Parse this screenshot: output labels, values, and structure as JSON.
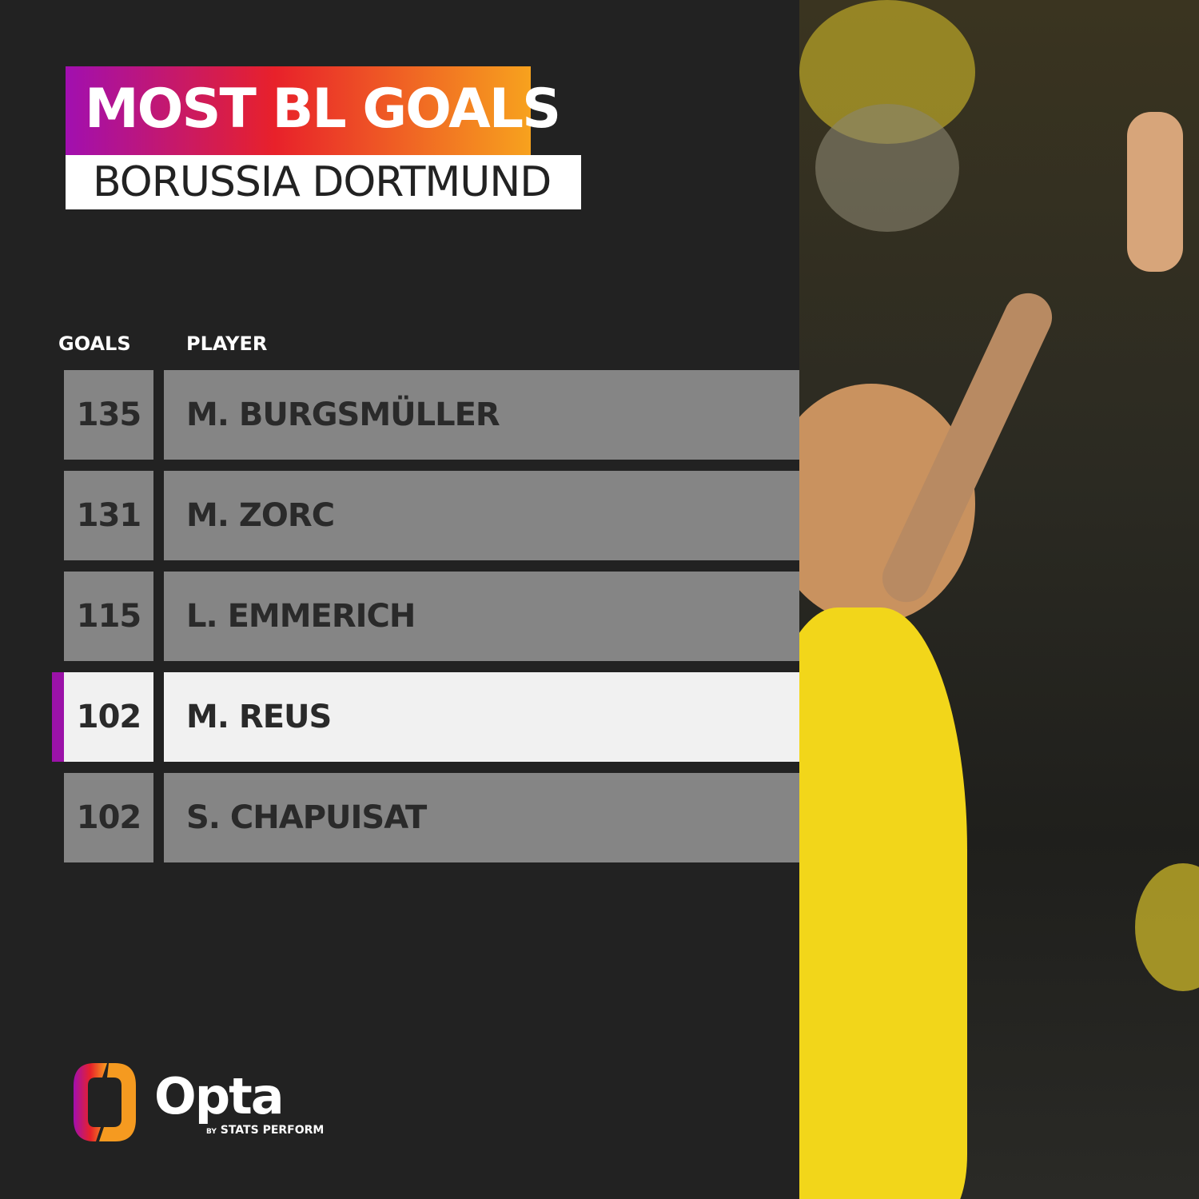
{
  "header": {
    "title": "MOST BL GOALS",
    "subtitle": "BORUSSIA DORTMUND"
  },
  "columns": {
    "goals": "GOALS",
    "player": "PLAYER"
  },
  "rows": [
    {
      "goals": "135",
      "player": "M. BURGSMÜLLER",
      "highlight": false
    },
    {
      "goals": "131",
      "player": "M. ZORC",
      "highlight": false
    },
    {
      "goals": "115",
      "player": "L. EMMERICH",
      "highlight": false
    },
    {
      "goals": "102",
      "player": "M. REUS",
      "highlight": true
    },
    {
      "goals": "102",
      "player": "S. CHAPUISAT",
      "highlight": false
    }
  ],
  "branding": {
    "name": "Opta",
    "tagline_by": "BY",
    "tagline": "STATS PERFORM"
  },
  "colors": {
    "background": "#222222",
    "row": "#858585",
    "highlight_row": "#f1f1f1",
    "highlight_bar": "#9b12a8",
    "gradient_start": "#a10fb0",
    "gradient_mid": "#e8212a",
    "gradient_end": "#f7a21e"
  }
}
